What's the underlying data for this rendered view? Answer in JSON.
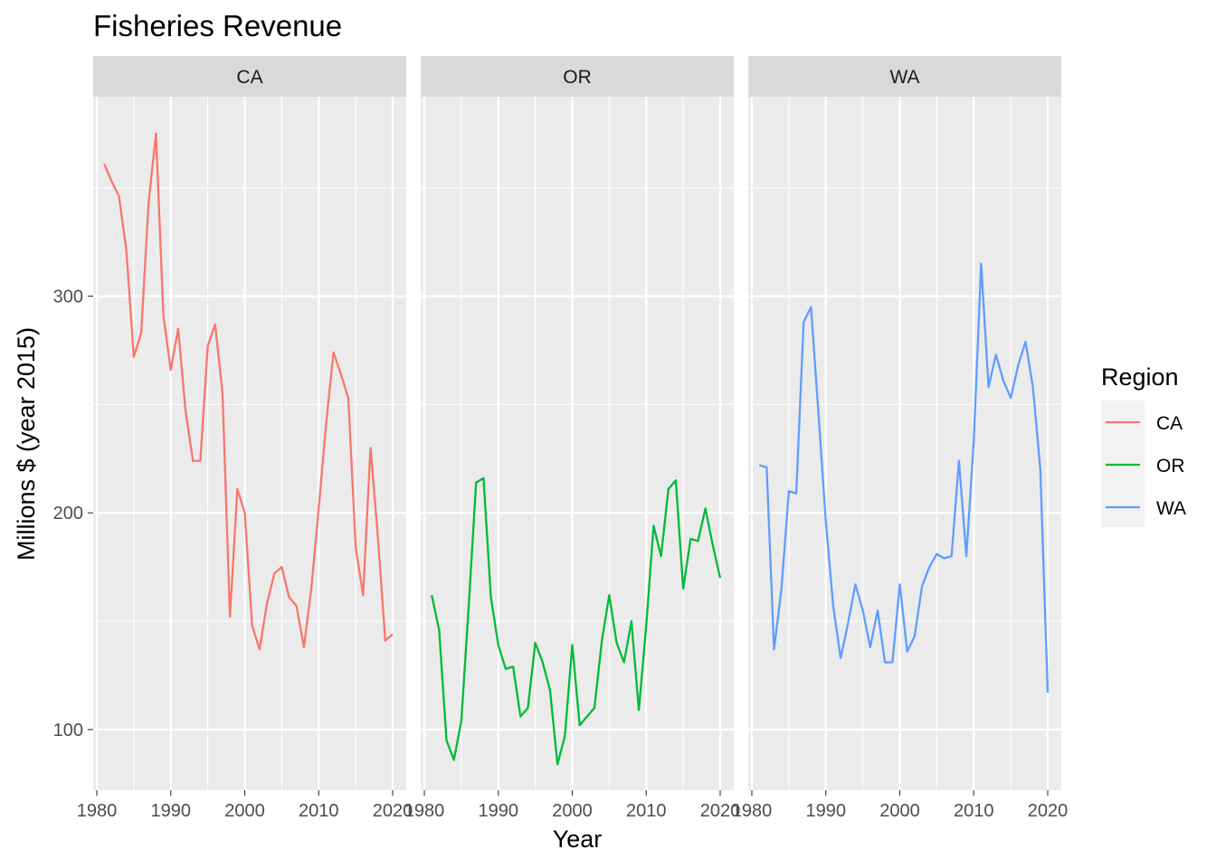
{
  "chart_data": {
    "type": "line",
    "title": "Fisheries Revenue",
    "xlabel": "Year",
    "ylabel": "Millions $ (year 2015)",
    "xlim": [
      1980,
      2020
    ],
    "ylim": [
      72,
      392
    ],
    "x_ticks": [
      1980,
      1990,
      2000,
      2010,
      2020
    ],
    "y_ticks": [
      100,
      200,
      300
    ],
    "grid": true,
    "legend": {
      "title": "Region",
      "position": "right"
    },
    "x": [
      1981,
      1982,
      1983,
      1984,
      1985,
      1986,
      1987,
      1988,
      1989,
      1990,
      1991,
      1992,
      1993,
      1994,
      1995,
      1996,
      1997,
      1998,
      1999,
      2000,
      2001,
      2002,
      2003,
      2004,
      2005,
      2006,
      2007,
      2008,
      2009,
      2010,
      2011,
      2012,
      2013,
      2014,
      2015,
      2016,
      2017,
      2018,
      2019,
      2020
    ],
    "series": [
      {
        "name": "CA",
        "color": "#F8766D",
        "values": [
          361,
          353,
          346,
          321,
          272,
          283,
          343,
          375,
          291,
          266,
          285,
          247,
          224,
          224,
          277,
          287,
          255,
          152,
          211,
          200,
          148,
          137,
          158,
          172,
          175,
          161,
          157,
          138,
          165,
          202,
          241,
          274,
          264,
          253,
          184,
          162,
          230,
          189,
          141,
          144
        ]
      },
      {
        "name": "OR",
        "color": "#00BA38",
        "values": [
          162,
          146,
          95,
          86,
          104,
          157,
          214,
          216,
          161,
          139,
          128,
          129,
          106,
          110,
          140,
          131,
          118,
          84,
          97,
          139,
          102,
          106,
          110,
          141,
          162,
          140,
          131,
          150,
          109,
          148,
          194,
          180,
          211,
          215,
          165,
          188,
          187,
          202,
          185,
          170
        ]
      },
      {
        "name": "WA",
        "color": "#619CFF",
        "values": [
          222,
          221,
          137,
          165,
          210,
          209,
          288,
          295,
          246,
          196,
          157,
          133,
          149,
          167,
          155,
          138,
          155,
          131,
          131,
          167,
          136,
          143,
          166,
          175,
          181,
          179,
          180,
          224,
          180,
          233,
          315,
          258,
          273,
          261,
          253,
          268,
          279,
          258,
          220,
          117
        ]
      }
    ],
    "facets": [
      "CA",
      "OR",
      "WA"
    ]
  }
}
